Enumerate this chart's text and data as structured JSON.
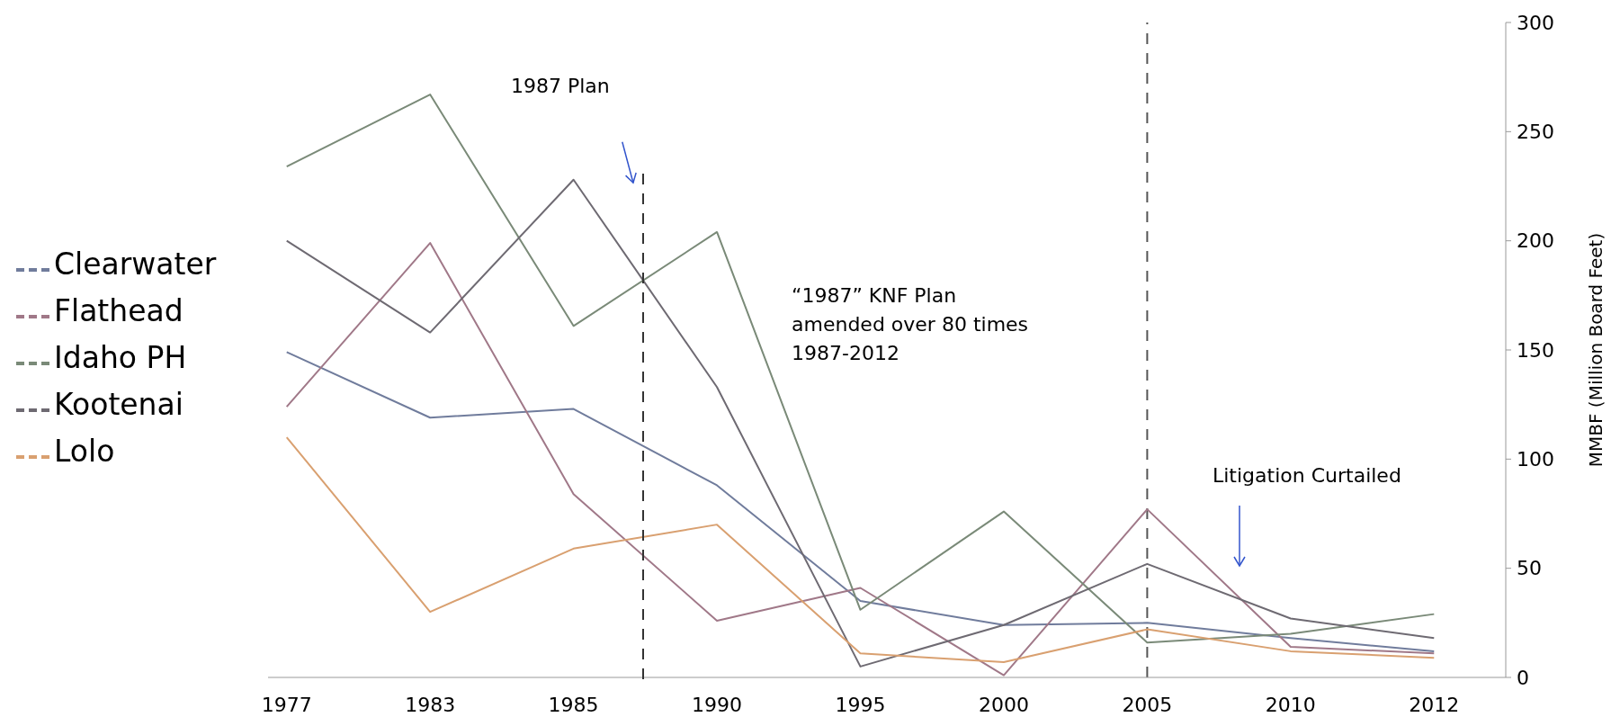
{
  "chart_data": {
    "type": "line",
    "categories": [
      "1977",
      "1983",
      "1985",
      "1990",
      "1995",
      "2000",
      "2005",
      "2010",
      "2012"
    ],
    "ylabel": "MMBF (Million Board Feet)",
    "ylim": [
      0,
      300
    ],
    "yticks": [
      0,
      50,
      100,
      150,
      200,
      250,
      300
    ],
    "legend": "left",
    "line_style": "solid",
    "series": [
      {
        "name": "Clearwater",
        "color": "#707c9c",
        "values": [
          149,
          119,
          123,
          88,
          35,
          24,
          25,
          18,
          12
        ]
      },
      {
        "name": "Flathead",
        "color": "#a07888",
        "values": [
          124,
          199,
          84,
          26,
          41,
          1,
          77,
          14,
          11
        ]
      },
      {
        "name": "Idaho PH",
        "color": "#7a8a78",
        "values": [
          234,
          267,
          161,
          204,
          31,
          76,
          16,
          20,
          29
        ]
      },
      {
        "name": "Kootenai",
        "color": "#6e6a72",
        "values": [
          200,
          158,
          228,
          133,
          5,
          24,
          52,
          27,
          18
        ]
      },
      {
        "name": "Lolo",
        "color": "#d9a070",
        "values": [
          110,
          30,
          59,
          70,
          11,
          7,
          22,
          12,
          9
        ]
      }
    ],
    "ref_lines": [
      {
        "axis": "x",
        "value": "2005",
        "line_style": "dashed",
        "color": "#555555"
      }
    ],
    "annotations": [
      "1987 Plan",
      "“1987” KNF Plan\namended over 80 times\n1987-2012",
      "Litigation Curtailed"
    ]
  }
}
